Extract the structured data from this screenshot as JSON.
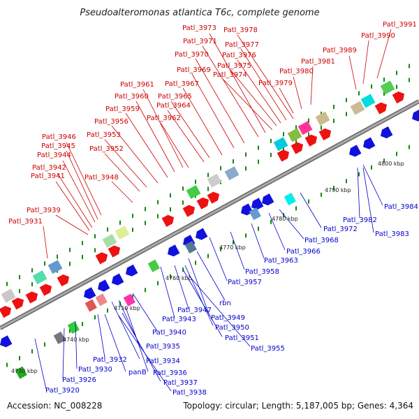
{
  "title": "Pseudoalteromonas atlantica T6c, complete genome",
  "accession": "Accession: NC_008228",
  "summary": "Topology: circular; Length: 5,187,005 bp; Genes: 4,364",
  "scale_labels": [
    "4730 kbp",
    "4740 kbp",
    "4750 kbp",
    "4760 kbp",
    "4770 kbp",
    "4780 kbp",
    "4790 kbp",
    "4800 kbp"
  ],
  "top_labels": [
    "Patl_3991",
    "Patl_3990",
    "Patl_3989",
    "Patl_3981",
    "Patl_3980",
    "Patl_3979",
    "Patl_3978",
    "Patl_3977",
    "Patl_3976",
    "Patl_3975",
    "Patl_3974",
    "Patl_3973",
    "Patl_3971",
    "Patl_3970",
    "Patl_3969",
    "Patl_3967",
    "Patl_3965",
    "Patl_3964",
    "Patl_3962",
    "Patl_3961",
    "Patl_3960",
    "Patl_3959",
    "Patl_3956",
    "Patl_3953",
    "Patl_3952",
    "Patl_3948",
    "Patl_3946",
    "Patl_3945",
    "Patl_3944",
    "Patl_3942",
    "Patl_3941",
    "Patl_3939",
    "Patl_3931"
  ],
  "bottom_labels": [
    "Patl_3984",
    "Patl_3982",
    "Patl_3983",
    "Patl_3972",
    "Patl_3968",
    "Patl_3966",
    "Patl_3963",
    "Patl_3958",
    "Patl_3957",
    "rbn",
    "Patl_3947",
    "Patl_3949",
    "Patl_3943",
    "Patl_3950",
    "Patl_3951",
    "Patl_3955",
    "Patl_3940",
    "Patl_3935",
    "Patl_3934",
    "Patl_3932",
    "Patl_3936",
    "Patl_3930",
    "panB",
    "Patl_3937",
    "Patl_3938",
    "Patl_3926",
    "Patl_3920"
  ],
  "colors": {
    "forward": "#ee1111",
    "reverse": "#1111dd",
    "backbone": "#999999",
    "label_top": "#cc0000",
    "label_bottom": "#0000cc",
    "ticks": "#118811"
  }
}
